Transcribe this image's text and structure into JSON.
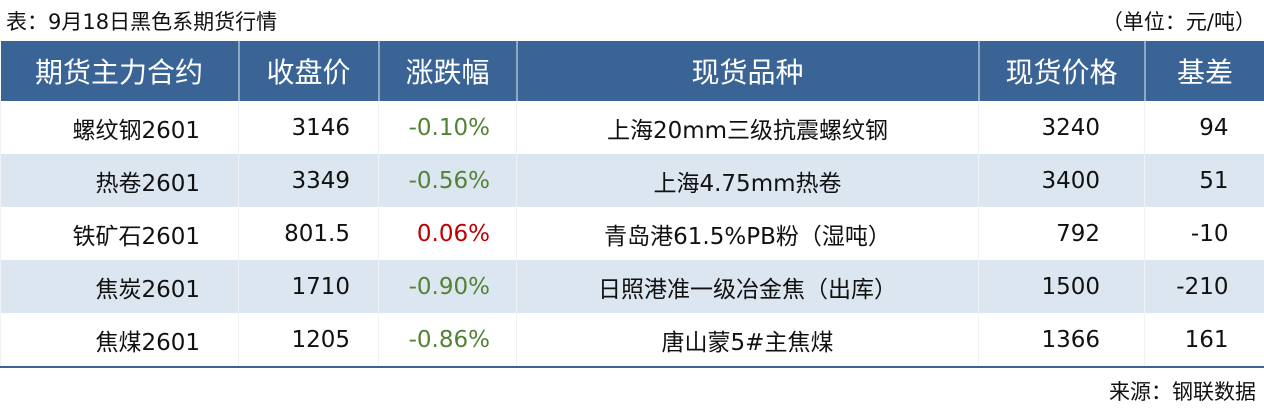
{
  "title": "表：9月18日黑色系期货行情",
  "unit": "（单位：元/吨）",
  "headers": [
    "期货主力合约",
    "收盘价",
    "涨跌幅",
    "现货品种",
    "现货价格",
    "基差"
  ],
  "rows": [
    {
      "contract": "螺纹钢2601",
      "close": "3146",
      "change": "-0.10%",
      "spot_variety": "上海20mm三级抗震螺纹钢",
      "spot_price": "3240",
      "basis": "94"
    },
    {
      "contract": "热卷2601",
      "close": "3349",
      "change": "-0.56%",
      "spot_variety": "上海4.75mm热卷",
      "spot_price": "3400",
      "basis": "51"
    },
    {
      "contract": "铁矿石2601",
      "close": "801.5",
      "change": "0.06%",
      "spot_variety": "青岛港61.5%PB粉（湿吨）",
      "spot_price": "792",
      "basis": "-10"
    },
    {
      "contract": "焦炭2601",
      "close": "1710",
      "change": "-0.90%",
      "spot_variety": "日照港准一级冶金焦（出库）",
      "spot_price": "1500",
      "basis": "-210"
    },
    {
      "contract": "焦煤2601",
      "close": "1205",
      "change": "-0.86%",
      "spot_variety": "唐山蒙5#主焦煤",
      "spot_price": "1366",
      "basis": "161"
    }
  ],
  "source": "来源：钢联数据",
  "colors": {
    "header": "#3a6496",
    "alt_row": "#dce6f1",
    "up": "#c00000",
    "down": "#548235"
  }
}
